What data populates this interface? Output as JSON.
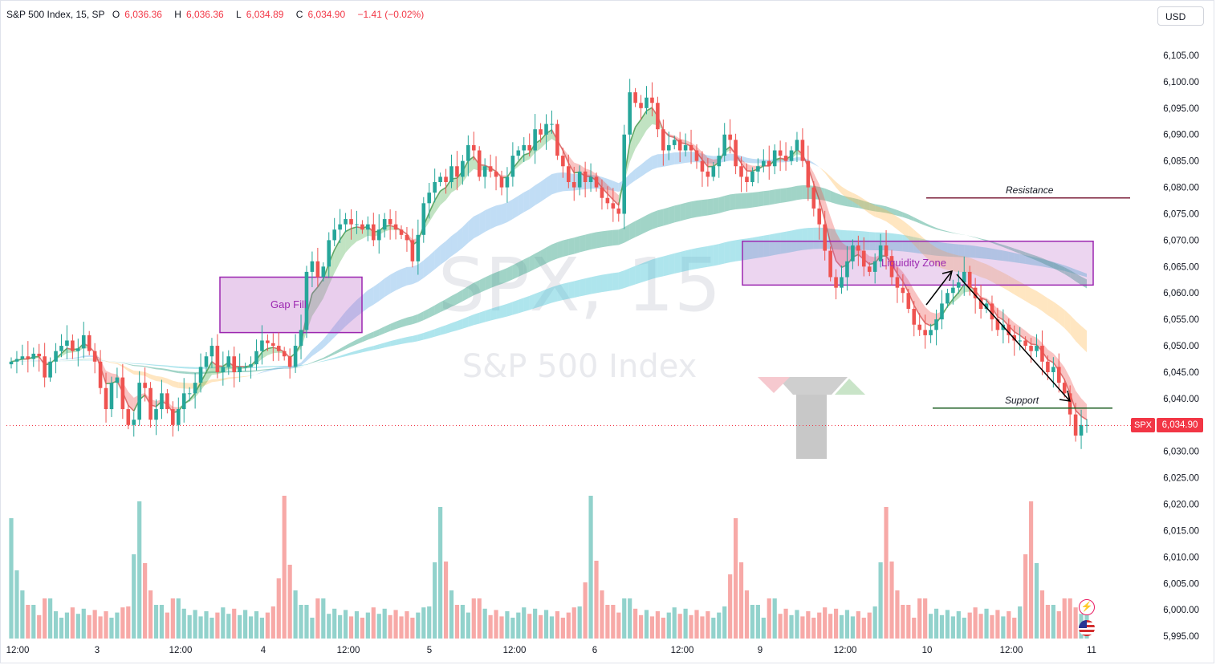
{
  "header": {
    "title": "S&P 500 Index, 15, SP",
    "open_label": "O",
    "open": "6,036.36",
    "high_label": "H",
    "high": "6,036.36",
    "low_label": "L",
    "low": "6,034.89",
    "close_label": "C",
    "close": "6,034.90",
    "change": "−1.41 (−0.02%)"
  },
  "currency": "USD",
  "watermark": {
    "symbol": "SPX, 15",
    "name": "S&P 500 Index"
  },
  "price_tag": {
    "symbol": "SPX",
    "value": "6,034.90"
  },
  "annotations": {
    "gap_fill": "Gap Fill",
    "liquidity_zone": "Liquidity Zone",
    "resistance": "Resistance",
    "support": "Support"
  },
  "icons": [
    "lightning-icon",
    "us-flag-icon"
  ],
  "colors": {
    "up": "#26a69a",
    "down": "#ef5350",
    "price_line": "#f23645",
    "zone": "#9c27b0"
  },
  "chart_data": {
    "type": "candlestick",
    "interval": "15",
    "ylim": [
      5993,
      6111
    ],
    "y_ticks": [
      "6,105.00",
      "6,100.00",
      "6,095.00",
      "6,090.00",
      "6,085.00",
      "6,080.00",
      "6,075.00",
      "6,070.00",
      "6,065.00",
      "6,060.00",
      "6,055.00",
      "6,050.00",
      "6,045.00",
      "6,040.00",
      "6,035.00",
      "6,030.00",
      "6,025.00",
      "6,020.00",
      "6,015.00",
      "6,010.00",
      "6,005.00",
      "6,000.00",
      "5,995.00"
    ],
    "x_ticks": [
      "12:00",
      "3",
      "12:00",
      "4",
      "12:00",
      "5",
      "12:00",
      "6",
      "12:00",
      "9",
      "12:00",
      "10",
      "12:00",
      "11"
    ],
    "close": [
      6047,
      6047.5,
      6048,
      6047.5,
      6048.5,
      6048,
      6044,
      6047,
      6049,
      6050,
      6051,
      6049,
      6049.5,
      6052,
      6049,
      6047,
      6042,
      6038,
      6043,
      6044,
      6038,
      6035,
      6036,
      6043,
      6042,
      6036,
      6038,
      6041,
      6038,
      6035,
      6038,
      6041,
      6041,
      6043,
      6046,
      6048,
      6050,
      6045,
      6046,
      6048,
      6045,
      6046,
      6046,
      6046.5,
      6049,
      6051,
      6050.5,
      6050,
      6049,
      6048,
      6046,
      6050,
      6053,
      6064,
      6066,
      6063,
      6065,
      6070,
      6072,
      6073,
      6074,
      6073,
      6073,
      6072,
      6073,
      6070,
      6072,
      6074,
      6073,
      6072,
      6071,
      6070,
      6066,
      6071,
      6077,
      6079,
      6081,
      6082,
      6081,
      6084,
      6082,
      6085,
      6088,
      6087,
      6082,
      6084,
      6083,
      6082,
      6080,
      6082,
      6086,
      6087,
      6088,
      6087,
      6091,
      6090,
      6092,
      6092,
      6086,
      6084,
      6081,
      6080,
      6083,
      6081,
      6082,
      6080,
      6078,
      6077,
      6076,
      6075,
      6090,
      6098,
      6096,
      6095,
      6097,
      6096,
      6091,
      6087,
      6088,
      6089,
      6087,
      6088,
      6087,
      6085,
      6083,
      6082,
      6084,
      6086,
      6090,
      6089,
      6084,
      6082,
      6081,
      6083,
      6084,
      6085,
      6084,
      6087,
      6086,
      6085,
      6087,
      6089,
      6085,
      6080,
      6076,
      6073,
      6068,
      6063,
      6061,
      6063,
      6066,
      6069,
      6068,
      6065,
      6064,
      6066,
      6069,
      6067,
      6063,
      6061,
      6060,
      6057,
      6054,
      6053,
      6052,
      6053,
      6055,
      6058,
      6060,
      6061,
      6062,
      6064,
      6061,
      6059,
      6057,
      6058,
      6055,
      6053,
      6054,
      6052,
      6051,
      6051,
      6050,
      6049,
      6050,
      6047,
      6045,
      6046,
      6043,
      6041,
      6037,
      6033,
      6035,
      6035
    ],
    "volume_spikes_at": [
      "3",
      "4",
      "5",
      "6",
      "9",
      "10",
      "11"
    ],
    "ema_bands": 4,
    "zones": {
      "gap_fill": [
        6052.5,
        6063.0
      ],
      "liquidity_zone": [
        6061.5,
        6069.8
      ],
      "resistance": 6078.0,
      "support": 6038.2
    },
    "last_price": 6034.9
  }
}
